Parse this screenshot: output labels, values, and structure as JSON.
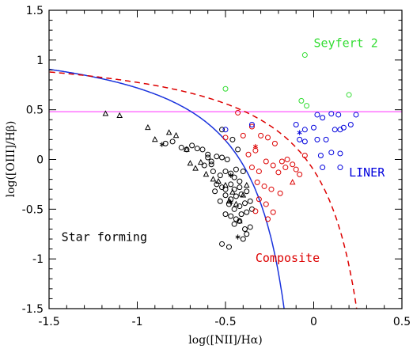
{
  "chart_data": {
    "type": "scatter",
    "xlabel": "log([NII]/Hα)",
    "ylabel": "log([OIII]/Hβ)",
    "xlim": [
      -1.5,
      0.5
    ],
    "ylim": [
      -1.5,
      1.5
    ],
    "x_ticks": [
      "-1.5",
      "-1",
      "-0.5",
      "0",
      "0.5"
    ],
    "y_ticks": [
      "-1.5",
      "-1",
      "-0.5",
      "0",
      "0.5",
      "1",
      "1.5"
    ],
    "x_tick_values": [
      -1.5,
      -1,
      -0.5,
      0,
      0.5
    ],
    "y_tick_values": [
      -1.5,
      -1,
      -0.5,
      0,
      0.5,
      1,
      1.5
    ],
    "grid": false,
    "annotations": [
      {
        "text": "Seyfert 2",
        "x": 0.0,
        "y": 1.13,
        "color": "#33dd33"
      },
      {
        "text": "LINER",
        "x": 0.2,
        "y": -0.17,
        "color": "#0000dd"
      },
      {
        "text": "Star forming",
        "x": -1.43,
        "y": -0.82,
        "color": "#000000"
      },
      {
        "text": "Composite",
        "x": -0.33,
        "y": -1.03,
        "color": "#dd0000"
      }
    ],
    "lines": [
      {
        "style": "solid",
        "color": "#ff66ff",
        "kind": "horizontal",
        "y": 0.48
      },
      {
        "style": "solid",
        "color": "#1a33dd",
        "kind": "kauffmann"
      },
      {
        "style": "dashed",
        "color": "#dd0000",
        "kind": "kewley"
      }
    ],
    "series": [
      {
        "marker": "circle",
        "color": "#000000",
        "points": [
          [
            -0.84,
            0.16
          ],
          [
            -0.8,
            0.18
          ],
          [
            -0.75,
            0.12
          ],
          [
            -0.72,
            0.1
          ],
          [
            -0.69,
            0.14
          ],
          [
            -0.66,
            0.11
          ],
          [
            -0.63,
            0.1
          ],
          [
            -0.6,
            0.02
          ],
          [
            -0.62,
            -0.06
          ],
          [
            -0.58,
            -0.02
          ],
          [
            -0.55,
            0.03
          ],
          [
            -0.52,
            0.02
          ],
          [
            -0.49,
            0.0
          ],
          [
            -0.57,
            -0.12
          ],
          [
            -0.53,
            -0.16
          ],
          [
            -0.5,
            -0.12
          ],
          [
            -0.47,
            -0.14
          ],
          [
            -0.44,
            -0.1
          ],
          [
            -0.55,
            -0.25
          ],
          [
            -0.52,
            -0.28
          ],
          [
            -0.5,
            -0.3
          ],
          [
            -0.47,
            -0.25
          ],
          [
            -0.45,
            -0.3
          ],
          [
            -0.42,
            -0.28
          ],
          [
            -0.5,
            -0.36
          ],
          [
            -0.47,
            -0.4
          ],
          [
            -0.44,
            -0.37
          ],
          [
            -0.41,
            -0.35
          ],
          [
            -0.38,
            -0.32
          ],
          [
            -0.48,
            -0.45
          ],
          [
            -0.45,
            -0.5
          ],
          [
            -0.42,
            -0.47
          ],
          [
            -0.39,
            -0.44
          ],
          [
            -0.36,
            -0.42
          ],
          [
            -0.47,
            -0.57
          ],
          [
            -0.44,
            -0.6
          ],
          [
            -0.41,
            -0.55
          ],
          [
            -0.38,
            -0.53
          ],
          [
            -0.35,
            -0.5
          ],
          [
            -0.45,
            -0.65
          ],
          [
            -0.42,
            -0.62
          ],
          [
            -0.39,
            -0.7
          ],
          [
            -0.36,
            -0.68
          ],
          [
            -0.5,
            -0.55
          ],
          [
            -0.53,
            -0.42
          ],
          [
            -0.56,
            -0.32
          ],
          [
            -0.4,
            -0.8
          ],
          [
            -0.38,
            -0.75
          ],
          [
            -0.52,
            -0.85
          ],
          [
            -0.48,
            -0.88
          ],
          [
            -0.43,
            0.1
          ],
          [
            -0.45,
            -0.18
          ],
          [
            -0.42,
            -0.22
          ],
          [
            -0.4,
            -0.12
          ],
          [
            -0.46,
            0.2
          ],
          [
            -0.52,
            0.3
          ],
          [
            -0.6,
            0.05
          ],
          [
            -0.58,
            -0.05
          ]
        ]
      },
      {
        "marker": "triangle",
        "color": "#000000",
        "points": [
          [
            -1.18,
            0.46
          ],
          [
            -1.1,
            0.44
          ],
          [
            -0.94,
            0.32
          ],
          [
            -0.9,
            0.2
          ],
          [
            -0.82,
            0.27
          ],
          [
            -0.78,
            0.24
          ],
          [
            -0.72,
            0.1
          ],
          [
            -0.7,
            -0.04
          ],
          [
            -0.67,
            -0.09
          ],
          [
            -0.64,
            -0.03
          ],
          [
            -0.61,
            -0.15
          ],
          [
            -0.57,
            -0.2
          ],
          [
            -0.54,
            -0.22
          ],
          [
            -0.5,
            -0.26
          ],
          [
            -0.46,
            -0.33
          ],
          [
            -0.48,
            -0.42
          ],
          [
            -0.44,
            -0.45
          ],
          [
            -0.4,
            -0.36
          ],
          [
            -0.38,
            -0.26
          ],
          [
            -0.42,
            -0.62
          ]
        ]
      },
      {
        "marker": "star",
        "color": "#000000",
        "points": [
          [
            -0.86,
            0.15
          ],
          [
            -0.47,
            -0.16
          ],
          [
            -0.47,
            -0.43
          ],
          [
            -0.43,
            -0.78
          ]
        ]
      },
      {
        "marker": "circle",
        "color": "#dd0000",
        "points": [
          [
            -0.5,
            0.22
          ],
          [
            -0.43,
            0.47
          ],
          [
            -0.35,
            0.33
          ],
          [
            -0.3,
            0.24
          ],
          [
            -0.33,
            0.09
          ],
          [
            -0.26,
            0.22
          ],
          [
            -0.22,
            0.16
          ],
          [
            -0.35,
            -0.08
          ],
          [
            -0.31,
            -0.12
          ],
          [
            -0.27,
            -0.02
          ],
          [
            -0.23,
            -0.06
          ],
          [
            -0.18,
            -0.02
          ],
          [
            -0.2,
            -0.13
          ],
          [
            -0.16,
            -0.08
          ],
          [
            -0.12,
            -0.05
          ],
          [
            -0.1,
            -0.1
          ],
          [
            -0.08,
            -0.15
          ],
          [
            -0.32,
            -0.23
          ],
          [
            -0.28,
            -0.27
          ],
          [
            -0.24,
            -0.3
          ],
          [
            -0.19,
            -0.34
          ],
          [
            -0.31,
            -0.4
          ],
          [
            -0.27,
            -0.45
          ],
          [
            -0.23,
            -0.53
          ],
          [
            -0.26,
            -0.6
          ],
          [
            -0.33,
            -0.52
          ],
          [
            -0.37,
            0.05
          ],
          [
            -0.4,
            0.24
          ],
          [
            -0.15,
            0.0
          ],
          [
            -0.05,
            0.04
          ]
        ]
      },
      {
        "marker": "triangle",
        "color": "#dd0000",
        "points": [
          [
            -0.12,
            -0.23
          ]
        ]
      },
      {
        "marker": "star",
        "color": "#dd0000",
        "points": [
          [
            -0.33,
            0.13
          ]
        ]
      },
      {
        "marker": "circle",
        "color": "#33dd33",
        "points": [
          [
            -0.05,
            1.05
          ],
          [
            -0.5,
            0.71
          ],
          [
            -0.07,
            0.59
          ],
          [
            -0.04,
            0.54
          ],
          [
            0.2,
            0.65
          ]
        ]
      },
      {
        "marker": "circle",
        "color": "#0000dd",
        "points": [
          [
            -0.35,
            0.35
          ],
          [
            -0.1,
            0.35
          ],
          [
            -0.05,
            0.3
          ],
          [
            0.0,
            0.32
          ],
          [
            0.02,
            0.45
          ],
          [
            0.05,
            0.42
          ],
          [
            0.1,
            0.46
          ],
          [
            0.14,
            0.45
          ],
          [
            0.17,
            0.32
          ],
          [
            0.21,
            0.35
          ],
          [
            0.24,
            0.45
          ],
          [
            0.15,
            0.3
          ],
          [
            0.12,
            0.3
          ],
          [
            0.07,
            0.2
          ],
          [
            0.02,
            0.2
          ],
          [
            -0.05,
            0.18
          ],
          [
            -0.08,
            0.2
          ],
          [
            0.04,
            0.04
          ],
          [
            0.1,
            0.07
          ],
          [
            0.15,
            0.06
          ],
          [
            0.05,
            -0.08
          ],
          [
            0.15,
            -0.08
          ],
          [
            -0.5,
            0.3
          ]
        ]
      },
      {
        "marker": "star",
        "color": "#0000dd",
        "points": [
          [
            -0.08,
            0.27
          ]
        ]
      }
    ]
  }
}
